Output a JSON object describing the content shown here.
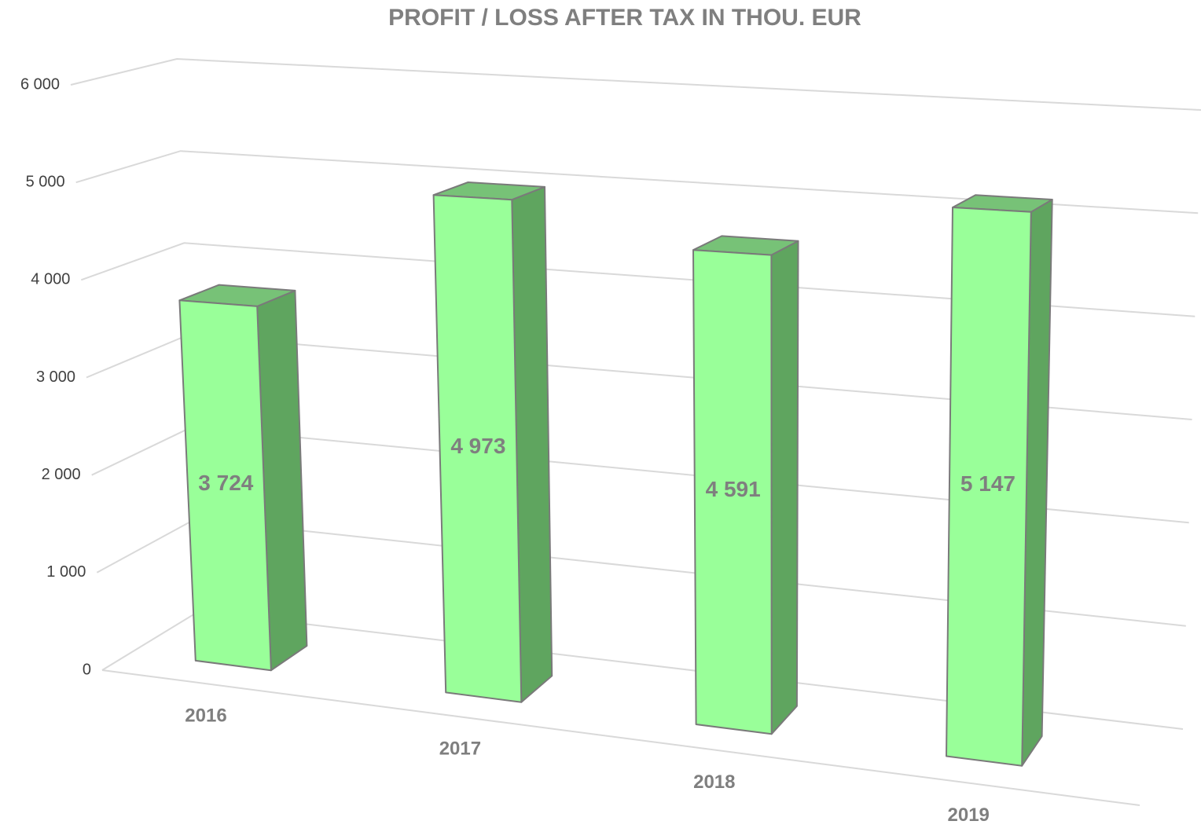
{
  "chart_data": {
    "type": "bar3d",
    "title": "PROFIT / LOSS AFTER TAX IN THOU. EUR",
    "categories": [
      "2016",
      "2017",
      "2018",
      "2019"
    ],
    "values": [
      3724,
      4973,
      4591,
      5147
    ],
    "value_labels": [
      "3 724",
      "4 973",
      "4 591",
      "5 147"
    ],
    "color": "#99ff99",
    "ylim": [
      0,
      6000
    ],
    "yticks": [
      0,
      {
        "value": 1000,
        "label": "1 000"
      },
      {
        "value": 2000,
        "label": "2 000"
      },
      {
        "value": 3000,
        "label": "3 000"
      },
      {
        "value": 4000,
        "label": "4 000"
      },
      {
        "value": 5000,
        "label": "5 000"
      },
      {
        "value": 6000,
        "label": "6 000"
      }
    ],
    "grid": true
  }
}
